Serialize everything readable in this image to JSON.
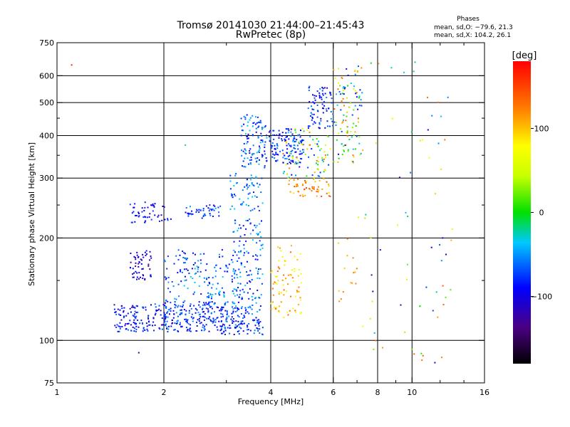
{
  "title_line1": "Tromsø 20141030 21:44:00–21:45:43",
  "title_line2": "RwPretec (8p)",
  "phase_info": {
    "heading": "Phases",
    "line_o": "mean, sd,O: −79.6, 21.3",
    "line_x": "mean, sd,X: 104.2, 26.1"
  },
  "colorbar": {
    "label": "[deg]",
    "tick_labels": [
      "100",
      "0",
      "−100"
    ],
    "ticks": [
      100,
      0,
      -100
    ],
    "range": [
      -180,
      180
    ]
  },
  "chart_data": {
    "type": "scatter",
    "xlabel": "Frequency [MHz]",
    "ylabel": "Stationary phase Virtual Height [km]",
    "xscale": "log",
    "yscale": "log",
    "xlim": [
      1,
      16
    ],
    "ylim": [
      75,
      750
    ],
    "x_ticks": [
      1,
      2,
      4,
      6,
      8,
      10,
      16
    ],
    "x_minor_ticks": [
      3,
      5,
      7,
      9,
      12,
      14
    ],
    "y_ticks": [
      75,
      100,
      200,
      300,
      400,
      500,
      600,
      750
    ],
    "y_minor_ticks": [
      150,
      250,
      350,
      450
    ],
    "grid": true,
    "color_scale": "phase in degrees, rainbow from -180 (black/purple) to 180 (red)",
    "clusters": [
      {
        "f": [
          1.45,
          2.05
        ],
        "h": [
          106,
          128
        ],
        "phase": [
          -130,
          -70
        ],
        "n": 140
      },
      {
        "f": [
          2.0,
          3.0
        ],
        "h": [
          106,
          130
        ],
        "phase": [
          -120,
          -60
        ],
        "n": 190
      },
      {
        "f": [
          2.9,
          3.8
        ],
        "h": [
          104,
          125
        ],
        "phase": [
          -120,
          -60
        ],
        "n": 110
      },
      {
        "f": [
          1.6,
          1.85
        ],
        "h": [
          150,
          185
        ],
        "phase": [
          -140,
          -90
        ],
        "n": 55
      },
      {
        "f": [
          2.0,
          3.3
        ],
        "h": [
          125,
          185
        ],
        "phase": [
          -110,
          -40
        ],
        "n": 160
      },
      {
        "f": [
          3.1,
          3.8
        ],
        "h": [
          120,
          230
        ],
        "phase": [
          -110,
          -40
        ],
        "n": 140
      },
      {
        "f": [
          1.6,
          2.1
        ],
        "h": [
          222,
          255
        ],
        "phase": [
          -120,
          -80
        ],
        "n": 50
      },
      {
        "f": [
          2.3,
          2.9
        ],
        "h": [
          228,
          250
        ],
        "phase": [
          -110,
          -60
        ],
        "n": 45
      },
      {
        "f": [
          3.05,
          3.8
        ],
        "h": [
          240,
          310
        ],
        "phase": [
          -100,
          -40
        ],
        "n": 60
      },
      {
        "f": [
          3.3,
          3.9
        ],
        "h": [
          320,
          460
        ],
        "phase": [
          -110,
          -40
        ],
        "n": 110
      },
      {
        "f": [
          3.95,
          4.95
        ],
        "h": [
          330,
          420
        ],
        "phase": [
          -120,
          -60
        ],
        "n": 130
      },
      {
        "f": [
          4.0,
          4.9
        ],
        "h": [
          115,
          190
        ],
        "phase": [
          60,
          140
        ],
        "n": 80
      },
      {
        "f": [
          4.5,
          5.9
        ],
        "h": [
          265,
          300
        ],
        "phase": [
          80,
          150
        ],
        "n": 55
      },
      {
        "f": [
          4.3,
          5.9
        ],
        "h": [
          300,
          420
        ],
        "phase": [
          -100,
          140
        ],
        "n": 90
      },
      {
        "f": [
          5.1,
          6.0
        ],
        "h": [
          420,
          560
        ],
        "phase": [
          -120,
          -60
        ],
        "n": 80
      },
      {
        "f": [
          6.0,
          7.2
        ],
        "h": [
          330,
          640
        ],
        "phase": [
          -120,
          140
        ],
        "n": 110
      },
      {
        "f": [
          6.2,
          7.0
        ],
        "h": [
          130,
          200
        ],
        "phase": [
          90,
          130
        ],
        "n": 15
      },
      {
        "f": [
          7.0,
          13.0
        ],
        "h": [
          85,
          660
        ],
        "phase": [
          -140,
          140
        ],
        "n": 70
      }
    ],
    "sparse_points": [
      {
        "f": 1.1,
        "h": 645,
        "phase": 160
      },
      {
        "f": 1.7,
        "h": 92,
        "phase": -140
      },
      {
        "f": 2.3,
        "h": 375,
        "phase": -40
      },
      {
        "f": 11.6,
        "h": 86,
        "phase": -120
      },
      {
        "f": 12.2,
        "h": 200,
        "phase": -120
      },
      {
        "f": 12.9,
        "h": 197,
        "phase": 110
      }
    ]
  }
}
